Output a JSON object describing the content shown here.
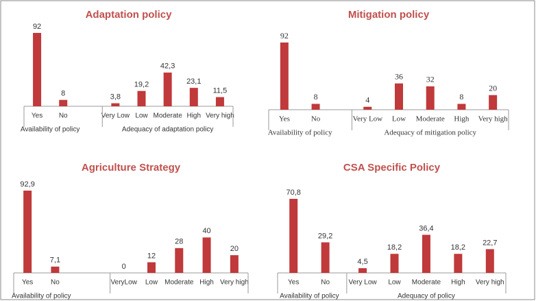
{
  "chart_data": [
    {
      "type": "bar",
      "title": "Adaptation policy",
      "color": "#c0393b",
      "groups": [
        {
          "label": "Availability of policy",
          "categories": [
            "Yes",
            "No"
          ],
          "values": [
            92,
            8
          ],
          "value_labels": [
            "92",
            "8"
          ]
        },
        {
          "label": "Adequacy of adaptation policy",
          "categories": [
            "Very Low",
            "Low",
            "Moderate",
            "High",
            "Very high"
          ],
          "values": [
            3.8,
            19.2,
            42.3,
            23.1,
            11.5
          ],
          "value_labels": [
            "3,8",
            "19,2",
            "42,3",
            "23,1",
            "11,5"
          ]
        }
      ]
    },
    {
      "type": "bar",
      "title": "Mitigation policy",
      "color": "#c0393b",
      "groups": [
        {
          "label": "Availability of policy",
          "categories": [
            "Yes",
            "No"
          ],
          "values": [
            92,
            8
          ],
          "value_labels": [
            "92",
            "8"
          ]
        },
        {
          "label": "Adequacy of mitigation policy",
          "categories": [
            "Very Low",
            "Low",
            "Moderate",
            "High",
            "Very high"
          ],
          "values": [
            4,
            36,
            32,
            8,
            20
          ],
          "value_labels": [
            "4",
            "36",
            "32",
            "8",
            "20"
          ]
        }
      ]
    },
    {
      "type": "bar",
      "title": "Agriculture Strategy",
      "color": "#c0393b",
      "groups": [
        {
          "label": "Availability of policy",
          "categories": [
            "Yes",
            "No"
          ],
          "values": [
            92.9,
            7.1
          ],
          "value_labels": [
            "92,9",
            "7,1"
          ]
        },
        {
          "categories": [
            "VeryLow",
            "Low",
            "Moderate",
            "High",
            "Very high"
          ],
          "values": [
            0,
            12,
            28,
            40,
            20
          ],
          "value_labels": [
            "0",
            "12",
            "28",
            "40",
            "20"
          ]
        }
      ]
    },
    {
      "type": "bar",
      "title": "CSA Specific Policy",
      "color": "#c0393b",
      "groups": [
        {
          "label": "Availability of policy",
          "categories": [
            "Yes",
            "No"
          ],
          "values": [
            70.8,
            29.2
          ],
          "value_labels": [
            "70,8",
            "29,2"
          ]
        },
        {
          "label": "Adequacy of policy",
          "categories": [
            "Very Low",
            "Low",
            "Moderate",
            "High",
            "Very high"
          ],
          "values": [
            4.5,
            18.2,
            36.4,
            18.2,
            22.7
          ],
          "value_labels": [
            "4,5",
            "18,2",
            "36,4",
            "18,2",
            "22,7"
          ]
        }
      ]
    }
  ]
}
